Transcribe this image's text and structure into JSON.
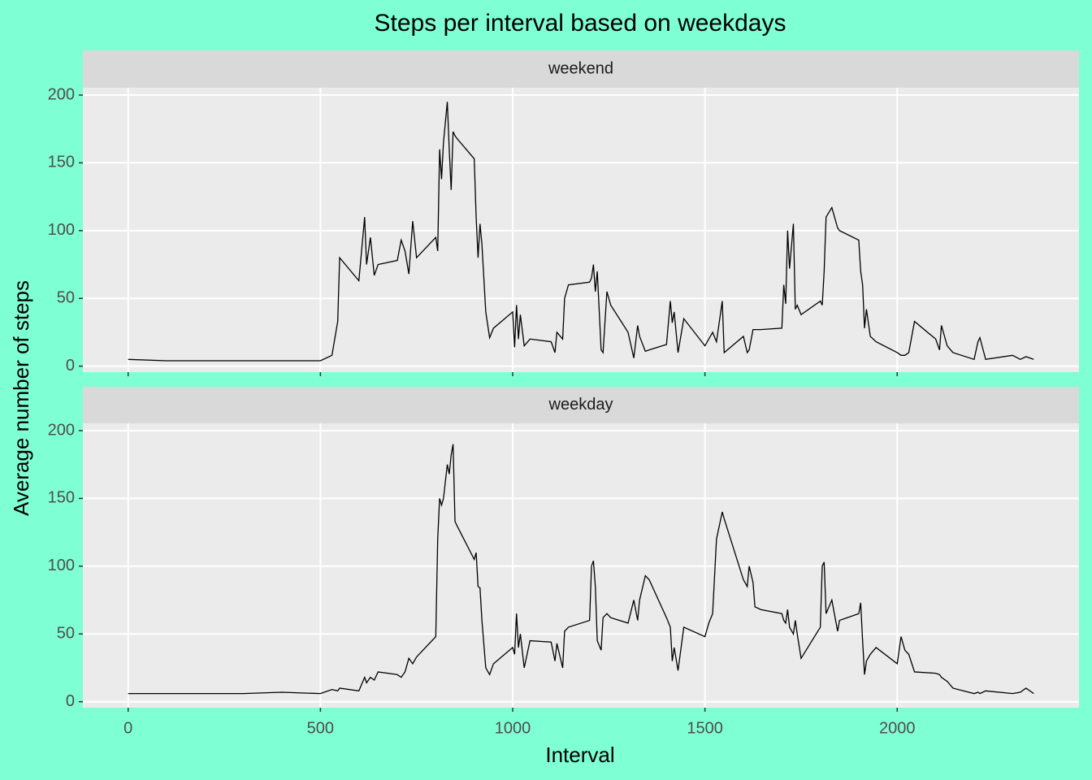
{
  "chart_data": {
    "type": "line",
    "title": "Steps per interval based on weekdays",
    "x_label": "Interval",
    "y_label": "Average number of steps",
    "facet": true,
    "grid": true,
    "x": [
      0,
      100,
      200,
      300,
      400,
      500,
      530,
      545,
      550,
      600,
      615,
      620,
      630,
      640,
      650,
      700,
      710,
      720,
      730,
      740,
      750,
      800,
      805,
      810,
      815,
      820,
      830,
      835,
      840,
      845,
      850,
      855,
      900,
      905,
      910,
      915,
      920,
      930,
      940,
      950,
      1000,
      1005,
      1010,
      1015,
      1020,
      1030,
      1045,
      1100,
      1110,
      1115,
      1130,
      1135,
      1145,
      1200,
      1205,
      1210,
      1215,
      1220,
      1230,
      1235,
      1245,
      1255,
      1300,
      1315,
      1325,
      1330,
      1345,
      1355,
      1400,
      1410,
      1415,
      1420,
      1430,
      1445,
      1500,
      1510,
      1520,
      1530,
      1545,
      1550,
      1600,
      1610,
      1615,
      1625,
      1630,
      1645,
      1700,
      1705,
      1710,
      1715,
      1720,
      1730,
      1735,
      1740,
      1750,
      1800,
      1805,
      1810,
      1815,
      1830,
      1845,
      1850,
      1900,
      1905,
      1910,
      1915,
      1920,
      1930,
      1945,
      2000,
      2010,
      2020,
      2030,
      2045,
      2100,
      2110,
      2115,
      2130,
      2145,
      2200,
      2210,
      2215,
      2230,
      2300,
      2320,
      2335,
      2355
    ],
    "series": [
      {
        "name": "weekend",
        "color": "#000000",
        "values": [
          5,
          4,
          4,
          4,
          4,
          4,
          8,
          33,
          80,
          63,
          110,
          75,
          95,
          67,
          75,
          78,
          93,
          85,
          68,
          107,
          80,
          95,
          85,
          160,
          138,
          165,
          195,
          160,
          130,
          173,
          170,
          168,
          153,
          110,
          80,
          105,
          90,
          40,
          21,
          28,
          40,
          14,
          45,
          20,
          38,
          15,
          20,
          18,
          10,
          25,
          20,
          50,
          60,
          62,
          65,
          75,
          55,
          70,
          12,
          10,
          55,
          45,
          25,
          6,
          30,
          22,
          11,
          12,
          16,
          48,
          32,
          40,
          10,
          35,
          15,
          20,
          25,
          18,
          48,
          10,
          22,
          10,
          12,
          27,
          27,
          27,
          28,
          60,
          46,
          100,
          72,
          105,
          42,
          45,
          38,
          48,
          45,
          70,
          110,
          117,
          102,
          100,
          93,
          70,
          60,
          28,
          42,
          22,
          18,
          10,
          8,
          8,
          10,
          33,
          20,
          12,
          30,
          15,
          10,
          5,
          18,
          21,
          5,
          8,
          5,
          7,
          5
        ]
      },
      {
        "name": "weekday",
        "color": "#000000",
        "values": [
          6,
          6,
          6,
          6,
          7,
          6,
          9,
          8,
          10,
          8,
          18,
          14,
          18,
          16,
          22,
          20,
          18,
          22,
          32,
          28,
          33,
          48,
          120,
          150,
          145,
          150,
          175,
          168,
          182,
          190,
          133,
          130,
          105,
          110,
          85,
          84,
          60,
          25,
          20,
          28,
          40,
          35,
          65,
          40,
          50,
          25,
          45,
          44,
          30,
          43,
          25,
          52,
          55,
          60,
          100,
          104,
          85,
          45,
          38,
          62,
          65,
          62,
          58,
          75,
          60,
          75,
          93,
          90,
          62,
          55,
          30,
          40,
          23,
          55,
          48,
          58,
          65,
          120,
          140,
          135,
          90,
          85,
          100,
          88,
          70,
          68,
          65,
          60,
          58,
          68,
          55,
          50,
          60,
          50,
          32,
          55,
          100,
          103,
          65,
          75,
          52,
          60,
          65,
          73,
          45,
          20,
          30,
          35,
          40,
          28,
          48,
          38,
          35,
          22,
          21,
          20,
          18,
          15,
          10,
          6,
          7,
          6,
          8,
          6,
          7,
          10,
          6
        ]
      }
    ],
    "xlim": [
      -117.75,
      2472.75
    ],
    "xticks": [
      0,
      500,
      1000,
      1500,
      2000
    ],
    "ylim": [
      -4.4,
      205.4
    ],
    "yticks": [
      0,
      50,
      100,
      150,
      200
    ]
  }
}
